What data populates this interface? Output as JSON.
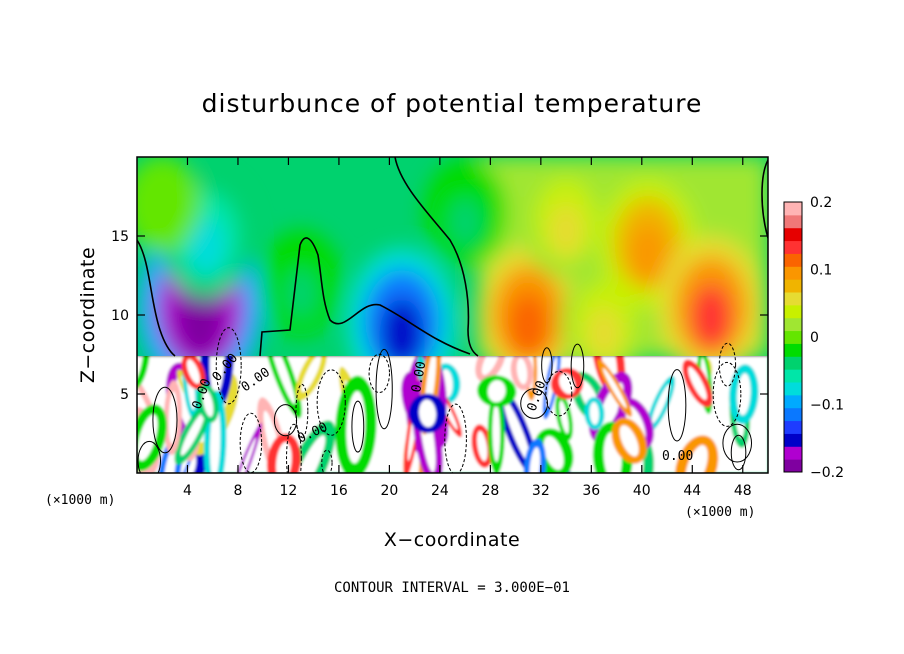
{
  "chart_data": {
    "type": "heatmap",
    "title": "disturbunce of potential temperature",
    "xlabel": "X−coordinate",
    "ylabel": "Z−coordinate",
    "x_unit": "(×1000 m)",
    "x_unit_right": "(×1000 m)",
    "xlim": [
      0,
      50
    ],
    "ylim": [
      0,
      20
    ],
    "x_ticks": [
      4,
      8,
      12,
      16,
      20,
      24,
      28,
      32,
      36,
      40,
      44,
      48
    ],
    "x_tick_labels": [
      "4",
      "8",
      "12",
      "16",
      "20",
      "24",
      "28",
      "32",
      "36",
      "40",
      "44",
      "48"
    ],
    "y_ticks": [
      5,
      10,
      15
    ],
    "y_tick_labels": [
      "5",
      "10",
      "15"
    ],
    "colorbar": {
      "min": -0.2,
      "max": 0.2,
      "ticks": [
        0.2,
        0.1,
        0,
        -0.1,
        -0.2
      ],
      "tick_labels": [
        "0.2",
        "0.1",
        "0",
        "−0.1",
        "−0.2"
      ],
      "colors": [
        "#7f00a0",
        "#b000d0",
        "#0000c8",
        "#1e3cff",
        "#0a78ff",
        "#00aaff",
        "#00dcdc",
        "#00e6a8",
        "#00d26e",
        "#00dc00",
        "#64e600",
        "#a0e632",
        "#c8f000",
        "#e6dc32",
        "#f0b400",
        "#fa9600",
        "#fa6400",
        "#ff3232",
        "#e60000",
        "#f07878",
        "#ffb4b4"
      ]
    },
    "anomalies": [
      {
        "x": 5.0,
        "z": 10.5,
        "value": -0.22
      },
      {
        "x": 5.5,
        "z": 15.0,
        "value": -0.08
      },
      {
        "x": 13.0,
        "z": 12.0,
        "value": -0.03
      },
      {
        "x": 21.0,
        "z": 9.5,
        "value": -0.15
      },
      {
        "x": 26.0,
        "z": 16.5,
        "value": -0.03
      },
      {
        "x": 31.0,
        "z": 10.0,
        "value": 0.12
      },
      {
        "x": 34.0,
        "z": 16.0,
        "value": 0.06
      },
      {
        "x": 37.0,
        "z": 9.5,
        "value": 0.05
      },
      {
        "x": 40.5,
        "z": 14.5,
        "value": 0.09
      },
      {
        "x": 45.5,
        "z": 10.5,
        "value": 0.13
      },
      {
        "x": 2.0,
        "z": 17.0,
        "value": 0.0
      }
    ],
    "contour_interval": "CONTOUR INTERVAL = 3.000E−01",
    "contour_labels": [
      "0.00",
      "0.00",
      "0.00",
      "0.00",
      "0.00",
      "0.00",
      "0.00"
    ]
  }
}
